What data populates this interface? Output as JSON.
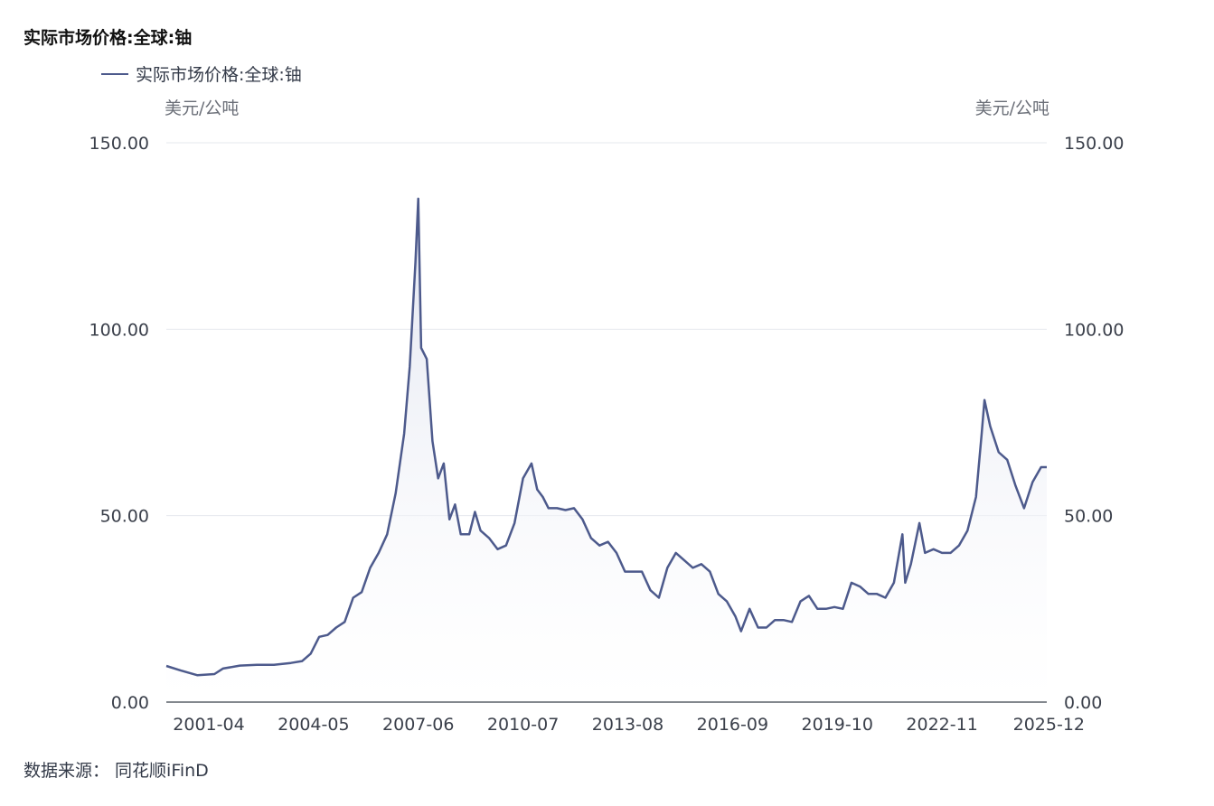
{
  "title": "实际市场价格:全球:铀",
  "legend": {
    "label": "实际市场价格:全球:铀"
  },
  "units": {
    "left": "美元/公吨",
    "right": "美元/公吨"
  },
  "source": "数据来源：  同花顺iFinD",
  "colors": {
    "line": "#4d5a8c",
    "grid": "#e6e8ee",
    "axis": "#5a6068",
    "area_top": "#dde1ee"
  },
  "chart_data": {
    "type": "area",
    "title": "实际市场价格:全球:铀",
    "ylabel": "美元/公吨",
    "ylim": [
      0,
      150
    ],
    "yticks": [
      "0.00",
      "50.00",
      "100.00",
      "150.00"
    ],
    "x_tick_labels": [
      "2001-04",
      "2004-05",
      "2007-06",
      "2010-07",
      "2013-08",
      "2016-09",
      "2019-10",
      "2022-11",
      "2025-12"
    ],
    "x_range": [
      "2000-01",
      "2025-12"
    ],
    "grid": true,
    "legend_position": "top-left",
    "series": [
      {
        "name": "实际市场价格:全球:铀",
        "x": [
          "2000-01",
          "2000-06",
          "2000-12",
          "2001-06",
          "2001-09",
          "2002-03",
          "2002-09",
          "2003-03",
          "2003-09",
          "2004-01",
          "2004-04",
          "2004-07",
          "2004-10",
          "2005-01",
          "2005-04",
          "2005-07",
          "2005-10",
          "2006-01",
          "2006-04",
          "2006-07",
          "2006-10",
          "2007-01",
          "2007-03",
          "2007-05",
          "2007-06",
          "2007-07",
          "2007-09",
          "2007-11",
          "2008-01",
          "2008-03",
          "2008-05",
          "2008-07",
          "2008-09",
          "2008-12",
          "2009-02",
          "2009-04",
          "2009-07",
          "2009-10",
          "2010-01",
          "2010-04",
          "2010-07",
          "2010-10",
          "2010-12",
          "2011-02",
          "2011-04",
          "2011-07",
          "2011-10",
          "2012-01",
          "2012-04",
          "2012-07",
          "2012-10",
          "2013-01",
          "2013-04",
          "2013-07",
          "2013-10",
          "2014-01",
          "2014-04",
          "2014-07",
          "2014-10",
          "2015-01",
          "2015-04",
          "2015-07",
          "2015-10",
          "2016-01",
          "2016-04",
          "2016-07",
          "2016-10",
          "2016-12",
          "2017-03",
          "2017-06",
          "2017-09",
          "2017-12",
          "2018-03",
          "2018-06",
          "2018-09",
          "2018-12",
          "2019-03",
          "2019-06",
          "2019-09",
          "2019-12",
          "2020-03",
          "2020-06",
          "2020-09",
          "2020-12",
          "2021-03",
          "2021-06",
          "2021-09",
          "2021-10",
          "2021-12",
          "2022-03",
          "2022-05",
          "2022-08",
          "2022-11",
          "2023-02",
          "2023-05",
          "2023-08",
          "2023-11",
          "2024-01",
          "2024-02",
          "2024-04",
          "2024-07",
          "2024-10",
          "2025-01",
          "2025-04",
          "2025-07",
          "2025-10",
          "2025-12"
        ],
        "y": [
          9.7,
          8.5,
          7.2,
          7.5,
          9.0,
          9.8,
          10.0,
          10.0,
          10.5,
          11.0,
          13.0,
          17.5,
          18.0,
          20.0,
          21.5,
          28.0,
          29.5,
          36.0,
          40.0,
          45.0,
          56.0,
          72.0,
          90.0,
          118.0,
          135.0,
          95.0,
          92.0,
          70.0,
          60.0,
          64.0,
          49.0,
          53.0,
          45.0,
          45.0,
          51.0,
          46.0,
          44.0,
          41.0,
          42.0,
          48.0,
          60.0,
          64.0,
          57.0,
          55.0,
          52.0,
          52.0,
          51.5,
          52.0,
          49.0,
          44.0,
          42.0,
          43.0,
          40.0,
          35.0,
          35.0,
          35.0,
          30.0,
          28.0,
          36.0,
          40.0,
          38.0,
          36.0,
          37.0,
          35.0,
          29.0,
          27.0,
          23.0,
          19.0,
          25.0,
          20.0,
          20.0,
          22.0,
          22.0,
          21.5,
          27.0,
          28.5,
          25.0,
          25.0,
          25.5,
          25.0,
          32.0,
          31.0,
          29.0,
          29.0,
          28.0,
          32.0,
          45.0,
          32.0,
          37.0,
          48.0,
          40.0,
          41.0,
          40.0,
          40.0,
          42.0,
          46.0,
          55.0,
          72.0,
          81.0,
          74.0,
          67.0,
          65.0,
          58.0,
          52.0,
          59.0,
          63.0,
          63.0
        ]
      }
    ]
  }
}
